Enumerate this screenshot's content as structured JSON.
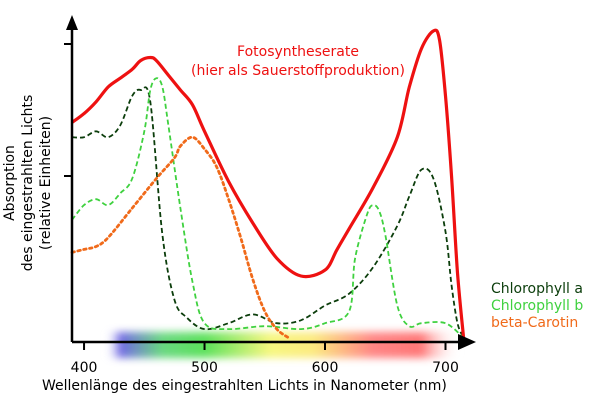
{
  "chart_data": {
    "type": "line",
    "xlabel": "Wellenlänge des eingestrahlten Lichts in Nanometer (nm)",
    "ylabel_lines": [
      "Absorption",
      "des eingestrahlten Lichts",
      "(relative Einheiten)"
    ],
    "xlim": [
      390,
      722
    ],
    "ylim": [
      0,
      1.05
    ],
    "x_ticks": [
      400,
      500,
      600,
      700
    ],
    "annotation_lines": [
      "Fotosyntheserate",
      "(hier als Sauerstoffproduktion)"
    ],
    "legend_position": "bottom-right",
    "spectrum_band": [
      {
        "x": 430,
        "color": "#5a4fe0"
      },
      {
        "x": 465,
        "color": "#4fd16a"
      },
      {
        "x": 500,
        "color": "#3fdc3f"
      },
      {
        "x": 555,
        "color": "#f6f66a"
      },
      {
        "x": 590,
        "color": "#fbe76a"
      },
      {
        "x": 640,
        "color": "#ff7070"
      },
      {
        "x": 680,
        "color": "#ff6060"
      }
    ],
    "series": [
      {
        "name": "Chlorophyll a",
        "color": "#0b3d0b",
        "style": "dashed",
        "x": [
          390,
          400,
          410,
          420,
          430,
          440,
          447,
          455,
          465,
          475,
          485,
          500,
          520,
          540,
          560,
          580,
          600,
          620,
          640,
          660,
          670,
          680,
          690,
          700,
          705,
          710,
          715
        ],
        "y": [
          0.68,
          0.68,
          0.7,
          0.68,
          0.72,
          0.82,
          0.84,
          0.8,
          0.35,
          0.13,
          0.07,
          0.03,
          0.05,
          0.08,
          0.05,
          0.06,
          0.11,
          0.15,
          0.24,
          0.38,
          0.48,
          0.57,
          0.54,
          0.36,
          0.18,
          0.05,
          0.0
        ]
      },
      {
        "name": "Chlorophyll b",
        "color": "#3fd13f",
        "style": "dashed",
        "x": [
          390,
          400,
          410,
          420,
          430,
          440,
          450,
          455,
          460,
          465,
          470,
          480,
          490,
          500,
          520,
          550,
          580,
          600,
          620,
          625,
          635,
          640,
          645,
          650,
          660,
          670,
          680,
          700,
          715
        ],
        "y": [
          0.4,
          0.45,
          0.47,
          0.45,
          0.49,
          0.54,
          0.7,
          0.84,
          0.88,
          0.85,
          0.72,
          0.44,
          0.19,
          0.05,
          0.03,
          0.04,
          0.03,
          0.05,
          0.09,
          0.27,
          0.42,
          0.45,
          0.43,
          0.35,
          0.11,
          0.04,
          0.05,
          0.05,
          0.0
        ]
      },
      {
        "name": "beta-Carotin",
        "color": "#f06a1a",
        "style": "dotted",
        "x": [
          390,
          400,
          410,
          420,
          440,
          460,
          475,
          480,
          490,
          500,
          510,
          520,
          530,
          540,
          550,
          560,
          570
        ],
        "y": [
          0.29,
          0.3,
          0.31,
          0.34,
          0.44,
          0.54,
          0.61,
          0.65,
          0.68,
          0.64,
          0.58,
          0.47,
          0.34,
          0.2,
          0.09,
          0.03,
          0.0
        ]
      },
      {
        "name": "Fotosyntheserate",
        "color": "#ee1111",
        "style": "solid",
        "x": [
          390,
          400,
          410,
          420,
          430,
          440,
          447,
          455,
          460,
          470,
          480,
          490,
          500,
          520,
          540,
          560,
          580,
          600,
          610,
          620,
          640,
          660,
          670,
          680,
          690,
          695,
          700,
          705,
          710,
          715
        ],
        "y": [
          0.73,
          0.76,
          0.8,
          0.85,
          0.88,
          0.91,
          0.94,
          0.95,
          0.94,
          0.89,
          0.84,
          0.79,
          0.7,
          0.53,
          0.39,
          0.27,
          0.21,
          0.23,
          0.3,
          0.37,
          0.51,
          0.68,
          0.85,
          0.98,
          1.04,
          1.01,
          0.82,
          0.55,
          0.22,
          0.0
        ]
      }
    ],
    "legend": [
      {
        "label": "Chlorophyll a",
        "color": "#0b3d0b"
      },
      {
        "label": "Chlorophyll b",
        "color": "#3fd13f"
      },
      {
        "label": "beta-Carotin",
        "color": "#f06a1a"
      }
    ]
  }
}
